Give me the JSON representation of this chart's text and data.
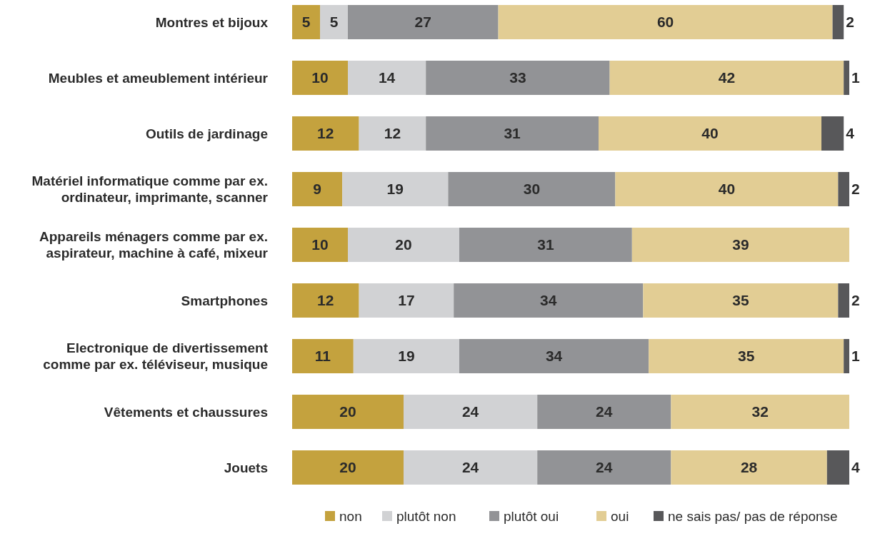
{
  "chart_data": {
    "type": "bar",
    "orientation": "horizontal",
    "stacked": true,
    "data_labels": true,
    "legend": "bottom",
    "categories": [
      "Montres et bijoux",
      "Meubles et ameublement intérieur",
      "Outils de jardinage",
      "Matériel informatique comme par ex.\nordinateur, imprimante, scanner",
      "Appareils ménagers comme par ex.\naspirateur, machine à café, mixeur",
      "Smartphones",
      "Electronique de divertissement\ncomme par ex. téléviseur, musique",
      "Vêtements et chaussures",
      "Jouets"
    ],
    "series": [
      {
        "name": "non",
        "color": "#c4a23e",
        "values": [
          5,
          10,
          12,
          9,
          10,
          12,
          11,
          20,
          20
        ]
      },
      {
        "name": "plutôt non",
        "color": "#d1d2d4",
        "values": [
          5,
          14,
          12,
          19,
          20,
          17,
          19,
          24,
          24
        ]
      },
      {
        "name": "plutôt oui",
        "color": "#929396",
        "values": [
          27,
          33,
          31,
          30,
          31,
          34,
          34,
          24,
          24
        ]
      },
      {
        "name": "oui",
        "color": "#e2cd94",
        "values": [
          60,
          42,
          40,
          40,
          39,
          35,
          35,
          32,
          28
        ]
      },
      {
        "name": "ne sais pas/ pas de réponse",
        "color": "#58585a",
        "values": [
          2,
          1,
          4,
          2,
          null,
          2,
          1,
          null,
          4
        ]
      }
    ]
  }
}
